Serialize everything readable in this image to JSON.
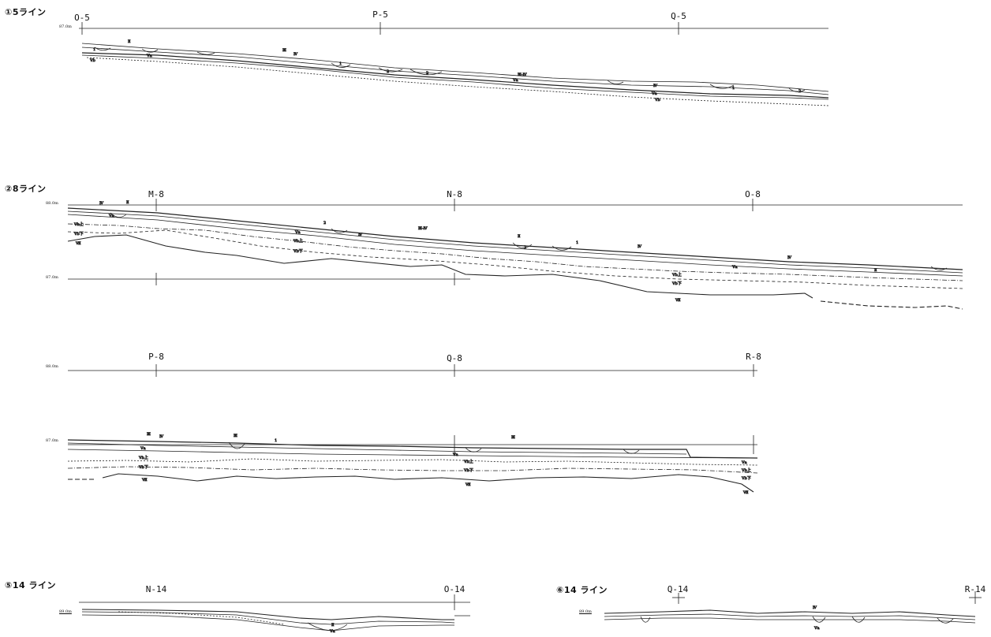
{
  "sections": {
    "s1": {
      "title": "①5ライン",
      "grid": [
        "O-5",
        "P-5",
        "Q-5"
      ],
      "elev_top": "87.0m",
      "labels": [
        "Ⅱ",
        "Ⅴa",
        "Ⅴb",
        "Ⅲ",
        "Ⅳ",
        "Ⅲ-Ⅳ",
        "Ⅴa",
        "Ⅳ",
        "Ⅴa",
        "Ⅴb",
        "1",
        "2",
        "2",
        "1",
        "2",
        "1"
      ]
    },
    "s2": {
      "title": "②8ライン",
      "grid_row1": [
        "M-8",
        "N-8",
        "O-8"
      ],
      "grid_row2": [
        "P-8",
        "Q-8",
        "R-8"
      ],
      "elev_a": "88.0m",
      "elev_b": "87.0m",
      "elev_c": "88.0m",
      "elev_d": "87.0m",
      "labels_a": [
        "Ⅳ",
        "Ⅱ",
        "Ⅴa",
        "Ⅴb上",
        "Ⅴb下",
        "Ⅶ",
        "2",
        "Ⅳ",
        "Ⅲ-Ⅳ",
        "Ⅱ",
        "Ⅴa",
        "Ⅴb上",
        "Ⅴb下",
        "1",
        "2",
        "Ⅳ",
        "Ⅳ",
        "Ⅴa",
        "Ⅱ",
        "Ⅴb上",
        "Ⅴb下",
        "Ⅶ"
      ],
      "labels_b": [
        "Ⅲ",
        "Ⅳ",
        "Ⅲ",
        "1",
        "Ⅴa",
        "Ⅴb上",
        "Ⅴb下",
        "Ⅶ",
        "Ⅲ",
        "Ⅴa",
        "Ⅴb上",
        "Ⅴb下",
        "Ⅶ",
        "Ⅴa",
        "Ⅴb上",
        "Ⅴb下",
        "Ⅶ"
      ]
    },
    "s5": {
      "title": "⑤14 ライン",
      "grid": [
        "N-14",
        "O-14"
      ],
      "elev": "89.0m",
      "labels": [
        "Ⅱ",
        "Ⅴa"
      ]
    },
    "s6": {
      "title": "⑥14 ライン",
      "grid": [
        "Q-14",
        "R-14"
      ],
      "elev": "89.0m",
      "labels": [
        "Ⅳ",
        "Ⅴa"
      ]
    }
  }
}
